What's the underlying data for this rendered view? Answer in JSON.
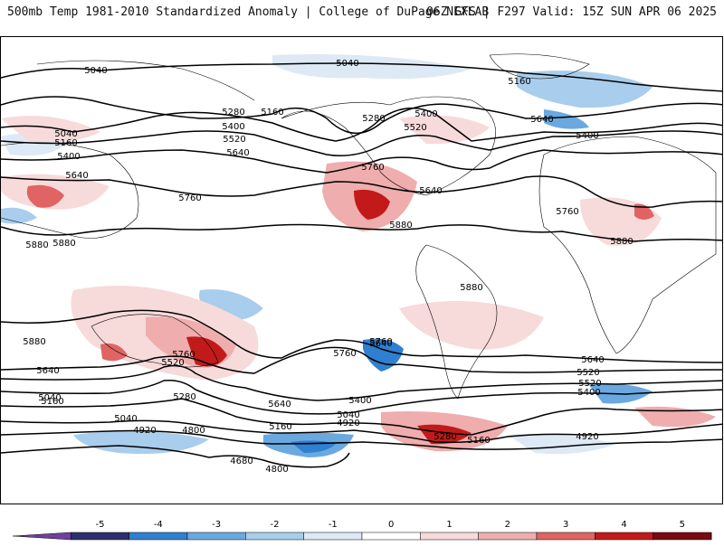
{
  "header": {
    "title_left": "500mb Temp 1981-2010 Standardized Anomaly | College of DuPage NEXLAB",
    "title_right": "06Z GFS | F297 Valid: 15Z SUN APR 06 2025"
  },
  "contour_labels": [
    "5040",
    "5040",
    "5160",
    "5280",
    "5160",
    "5400",
    "5280",
    "5520",
    "5400",
    "5640",
    "5520",
    "5400",
    "5040",
    "5160",
    "5400",
    "5640",
    "5760",
    "5760",
    "5640",
    "5880",
    "5760",
    "5640",
    "5880",
    "5880",
    "5880",
    "5880",
    "5880",
    "5760",
    "5640",
    "5760",
    "5520",
    "5640",
    "5520",
    "5280",
    "5640",
    "5760",
    "5640",
    "5520",
    "5400",
    "5040",
    "5400",
    "5160",
    "5040",
    "4920",
    "4800",
    "5040",
    "4920",
    "5160",
    "5280",
    "5160",
    "4920",
    "4680",
    "4800"
  ],
  "colorbar": {
    "ticks": [
      "-5",
      "-4",
      "-3",
      "-2",
      "-1",
      "0",
      "1",
      "2",
      "3",
      "4",
      "5"
    ],
    "colors": [
      "#2b2f6e",
      "#2f80d0",
      "#6aa9e0",
      "#a9cdec",
      "#dde9f5",
      "#ffffff",
      "#f7dada",
      "#efadad",
      "#e06464",
      "#c21a1a",
      "#7a0a10"
    ],
    "low_end_color": "#7040a0",
    "high_end_color": "#f0c000"
  }
}
